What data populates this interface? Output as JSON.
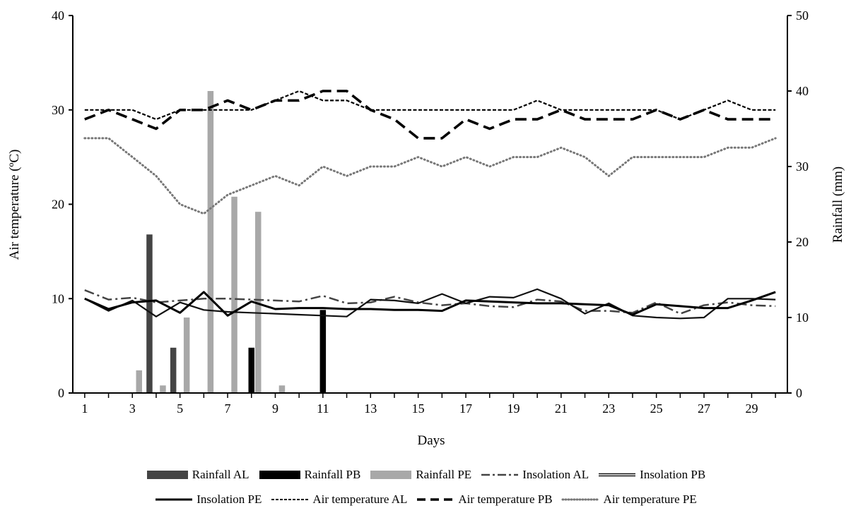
{
  "chart_data": {
    "type": "bar+line",
    "xlabel": "Days",
    "ylabel_left": "Air temperature (ºC)",
    "ylabel_right": "Rainfall (mm)",
    "x": [
      1,
      2,
      3,
      4,
      5,
      6,
      7,
      8,
      9,
      10,
      11,
      12,
      13,
      14,
      15,
      16,
      17,
      18,
      19,
      20,
      21,
      22,
      23,
      24,
      25,
      26,
      27,
      28,
      29,
      30
    ],
    "x_ticks": [
      1,
      3,
      5,
      7,
      9,
      11,
      13,
      15,
      17,
      19,
      21,
      23,
      25,
      27,
      29
    ],
    "ylim_left": [
      0,
      40
    ],
    "yticks_left": [
      0,
      10,
      20,
      30,
      40
    ],
    "ylim_right": [
      0,
      50
    ],
    "yticks_right": [
      0,
      10,
      20,
      30,
      40,
      50
    ],
    "grid": false,
    "legend_placement": "bottom",
    "bar_series": [
      {
        "name": "Rainfall AL",
        "color": "#444444",
        "values": [
          0,
          0,
          0,
          21,
          6,
          0,
          0,
          0,
          0,
          0,
          0,
          0,
          0,
          0,
          0,
          0,
          0,
          0,
          0,
          0,
          0,
          0,
          0,
          0,
          0,
          0,
          0,
          0,
          0,
          0
        ]
      },
      {
        "name": "Rainfall PB",
        "color": "#000000",
        "values": [
          0,
          0,
          0,
          0,
          0,
          0,
          0,
          6,
          0,
          0,
          11,
          0,
          0,
          0,
          0,
          0,
          0,
          0,
          0,
          0,
          0,
          0,
          0,
          0,
          0,
          0,
          0,
          0,
          0,
          0
        ]
      },
      {
        "name": "Rainfall PE",
        "color": "#a8a8a8",
        "values": [
          0,
          0,
          3,
          1,
          10,
          40,
          26,
          24,
          1,
          0,
          0,
          0,
          0,
          0,
          0,
          0,
          0,
          0,
          0,
          0,
          0,
          0,
          0,
          0,
          0,
          0,
          0,
          0,
          0,
          0
        ]
      }
    ],
    "line_series": [
      {
        "name": "Insolation AL",
        "color": "#444444",
        "style": "dashdot",
        "values": [
          10.9,
          9.9,
          10.1,
          9.6,
          9.8,
          10.0,
          10.0,
          9.9,
          9.8,
          9.7,
          10.3,
          9.5,
          9.6,
          10.2,
          9.6,
          9.3,
          9.5,
          9.2,
          9.1,
          9.9,
          9.7,
          8.7,
          8.7,
          8.5,
          9.6,
          8.4,
          9.3,
          9.6,
          9.3,
          9.2
        ]
      },
      {
        "name": "Insolation PB",
        "color": "#111111",
        "style": "double",
        "values": [
          10.0,
          8.7,
          9.8,
          8.1,
          9.6,
          8.8,
          8.6,
          8.5,
          8.4,
          8.3,
          8.2,
          8.1,
          9.9,
          9.8,
          9.5,
          10.5,
          9.5,
          10.2,
          10.1,
          11.0,
          10.0,
          8.4,
          9.5,
          8.2,
          8.0,
          7.9,
          8.0,
          10.0,
          10.0,
          9.9
        ]
      },
      {
        "name": "Insolation PE",
        "color": "#000000",
        "style": "solid",
        "values": [
          10.0,
          8.9,
          9.6,
          9.8,
          8.5,
          10.7,
          8.2,
          9.7,
          8.9,
          9.0,
          9.0,
          8.9,
          8.9,
          8.8,
          8.8,
          8.7,
          9.8,
          9.7,
          9.6,
          9.5,
          9.5,
          9.4,
          9.3,
          8.3,
          9.4,
          9.2,
          9.0,
          9.0,
          9.8,
          10.7
        ]
      },
      {
        "name": "Air temperature AL",
        "color": "#000000",
        "style": "shortdash",
        "values": [
          30,
          30,
          30,
          29,
          30,
          30,
          30,
          30,
          31,
          32,
          31,
          31,
          30,
          30,
          30,
          30,
          30,
          30,
          30,
          31,
          30,
          30,
          30,
          30,
          30,
          29,
          30,
          31,
          30,
          30
        ]
      },
      {
        "name": "Air temperature PB",
        "color": "#000000",
        "style": "longdash",
        "values": [
          29,
          30,
          29,
          28,
          30,
          30,
          31,
          30,
          31,
          31,
          32,
          32,
          30,
          29,
          27,
          27,
          29,
          28,
          29,
          29,
          30,
          29,
          29,
          29,
          30,
          29,
          30,
          29,
          29,
          29
        ]
      },
      {
        "name": "Air temperature PE",
        "color": "#777777",
        "style": "dotted",
        "values": [
          27,
          27,
          25,
          23,
          20,
          19,
          21,
          22,
          23,
          22,
          24,
          23,
          24,
          24,
          25,
          24,
          25,
          24,
          25,
          25,
          26,
          25,
          23,
          25,
          25,
          25,
          25,
          26,
          26,
          27
        ]
      }
    ]
  },
  "legend_row1": [
    "Rainfall AL",
    "Rainfall PB",
    "Rainfall PE",
    "Insolation AL",
    "Insolation PB"
  ],
  "legend_row2": [
    "Insolation PE",
    "Air temperature AL",
    "Air temperature PB",
    "Air temperature PE"
  ]
}
